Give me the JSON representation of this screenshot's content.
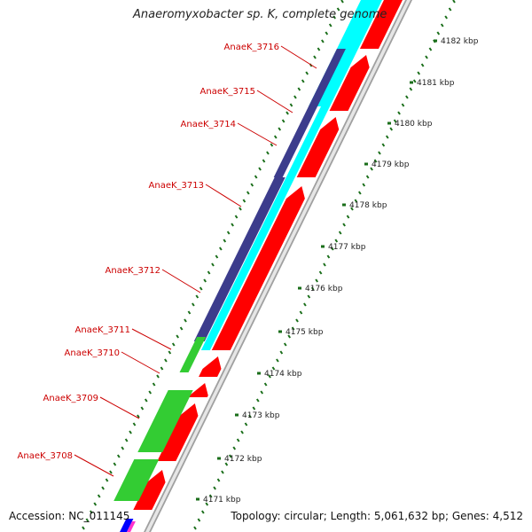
{
  "title": "Anaeromyxobacter sp. K, complete genome",
  "footer": {
    "accession": "Accession: NC_011145",
    "summary": "Topology: circular; Length: 5,061,632 bp; Genes: 4,512"
  },
  "colors": {
    "forward_cds": "#ff0000",
    "reverse_teal": "#00ffff",
    "reverse_navy": "#3c3c8c",
    "reverse_green": "#33cc33",
    "gene_label": "#cc0000",
    "tick_major": "#1a6e1a",
    "backbone": "#a0a0a0"
  },
  "scale_labels": [
    "4182 kbp",
    "4181 kbp",
    "4180 kbp",
    "4179 kbp",
    "4178 kbp",
    "4177 kbp",
    "4176 kbp",
    "4175 kbp",
    "4174 kbp",
    "4173 kbp",
    "4172 kbp",
    "4171 kbp"
  ],
  "gene_labels": [
    "AnaeK_3716",
    "AnaeK_3715",
    "AnaeK_3714",
    "AnaeK_3713",
    "AnaeK_3712",
    "AnaeK_3711",
    "AnaeK_3710",
    "AnaeK_3709",
    "AnaeK_3708"
  ]
}
